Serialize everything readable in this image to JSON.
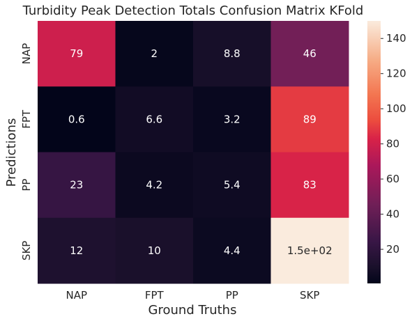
{
  "chart_data": {
    "type": "heatmap",
    "title": "Turbidity Peak Detection Totals Confusion Matrix KFold",
    "xlabel": "Ground Truths",
    "ylabel": "Predictions",
    "x_categories": [
      "NAP",
      "FPT",
      "PP",
      "SKP"
    ],
    "y_categories": [
      "NAP",
      "FPT",
      "PP",
      "SKP"
    ],
    "values": [
      [
        79,
        2,
        8.8,
        46
      ],
      [
        0.6,
        6.6,
        3.2,
        89
      ],
      [
        23,
        4.2,
        5.4,
        83
      ],
      [
        12,
        10,
        4.4,
        150
      ]
    ],
    "cell_labels": [
      [
        "79",
        "2",
        "8.8",
        "46"
      ],
      [
        "0.6",
        "6.6",
        "3.2",
        "89"
      ],
      [
        "23",
        "4.2",
        "5.4",
        "83"
      ],
      [
        "12",
        "10",
        "4.4",
        "1.5e+02"
      ]
    ],
    "colorbar": {
      "range": [
        0.6,
        150
      ],
      "ticks": [
        20,
        40,
        60,
        80,
        100,
        120,
        140
      ],
      "tick_labels": [
        "20",
        "40",
        "60",
        "80",
        "100",
        "120",
        "140"
      ],
      "colormap": "rocket"
    }
  }
}
